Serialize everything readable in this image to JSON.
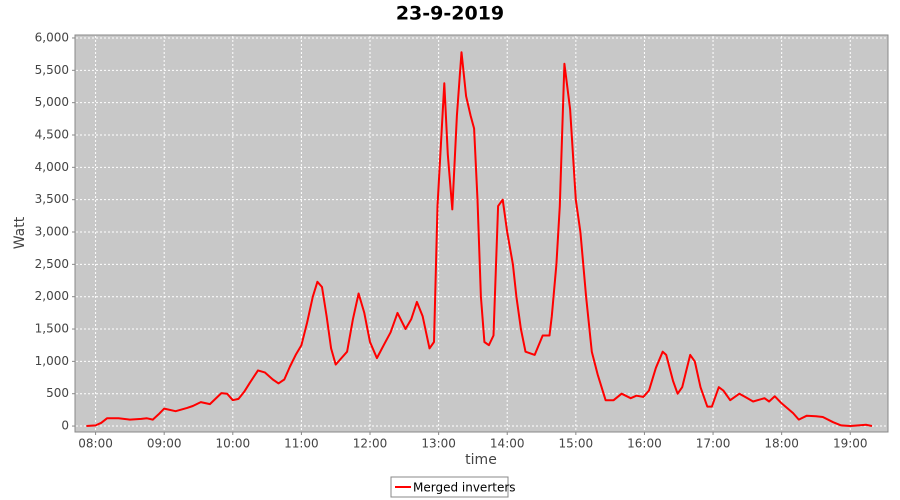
{
  "chart_data": {
    "type": "line",
    "title": "23-9-2019",
    "xlabel": "time",
    "ylabel": "Watt",
    "xlim": [
      "07:42",
      "19:33"
    ],
    "xticks": [
      "08:00",
      "09:00",
      "10:00",
      "11:00",
      "12:00",
      "13:00",
      "14:00",
      "15:00",
      "16:00",
      "17:00",
      "18:00",
      "19:00"
    ],
    "ylim": [
      -92,
      6046
    ],
    "yticks": [
      0,
      500,
      {
        "value": 1000,
        "label": "1,000"
      },
      {
        "value": 1500,
        "label": "1,500"
      },
      {
        "value": 2000,
        "label": "2,000"
      },
      {
        "value": 2500,
        "label": "2,500"
      },
      {
        "value": 3000,
        "label": "3,000"
      },
      {
        "value": 3500,
        "label": "3,500"
      },
      {
        "value": 4000,
        "label": "4,000"
      },
      {
        "value": 4500,
        "label": "4,500"
      },
      {
        "value": 5000,
        "label": "5,000"
      },
      {
        "value": 5500,
        "label": "5,500"
      },
      {
        "value": 6000,
        "label": "6,000"
      }
    ],
    "grid": true,
    "legend": "bottom",
    "x": [
      "07:52",
      "08:00",
      "08:05",
      "08:10",
      "08:20",
      "08:30",
      "08:40",
      "08:45",
      "08:50",
      "08:55",
      "09:00",
      "09:10",
      "09:20",
      "09:25",
      "09:32",
      "09:40",
      "09:50",
      "09:55",
      "10:00",
      "10:05",
      "10:10",
      "10:15",
      "10:22",
      "10:28",
      "10:35",
      "10:40",
      "10:45",
      "10:50",
      "10:55",
      "11:00",
      "11:05",
      "11:10",
      "11:14",
      "11:18",
      "11:22",
      "11:26",
      "11:30",
      "11:35",
      "11:40",
      "11:45",
      "11:50",
      "11:55",
      "12:00",
      "12:06",
      "12:12",
      "12:18",
      "12:24",
      "12:31",
      "12:36",
      "12:41",
      "12:46",
      "12:52",
      "12:56",
      "12:59",
      "13:05",
      "13:08",
      "13:12",
      "13:16",
      "13:20",
      "13:24",
      "13:28",
      "13:31",
      "13:34",
      "13:37",
      "13:40",
      "13:44",
      "13:48",
      "13:52",
      "13:56",
      "14:00",
      "14:05",
      "14:08",
      "14:12",
      "14:16",
      "14:24",
      "14:31",
      "14:37",
      "14:39",
      "14:43",
      "14:46",
      "14:50",
      "14:55",
      "15:00",
      "15:04",
      "15:09",
      "15:14",
      "15:19",
      "15:26",
      "15:33",
      "15:40",
      "15:48",
      "15:53",
      "15:59",
      "16:04",
      "16:10",
      "16:16",
      "16:19",
      "16:25",
      "16:29",
      "16:33",
      "16:40",
      "16:44",
      "16:49",
      "16:55",
      "16:59",
      "17:05",
      "17:09",
      "17:15",
      "17:23",
      "17:28",
      "17:35",
      "17:45",
      "17:49",
      "17:54",
      "18:00",
      "18:10",
      "18:15",
      "18:22",
      "18:30",
      "18:36",
      "18:45",
      "18:52",
      "19:00",
      "19:14",
      "19:19"
    ],
    "series": [
      {
        "name": "Merged inverters",
        "color": "#ff0000",
        "values": [
          0,
          10,
          50,
          120,
          120,
          100,
          110,
          120,
          100,
          180,
          270,
          230,
          280,
          310,
          370,
          340,
          510,
          500,
          400,
          420,
          530,
          670,
          860,
          830,
          720,
          660,
          720,
          920,
          1100,
          1250,
          1600,
          2000,
          2230,
          2150,
          1700,
          1200,
          950,
          1050,
          1150,
          1650,
          2050,
          1750,
          1300,
          1050,
          1250,
          1450,
          1750,
          1500,
          1650,
          1920,
          1700,
          1200,
          1300,
          3400,
          5300,
          4200,
          3350,
          4800,
          5780,
          5100,
          4800,
          4600,
          3500,
          2000,
          1300,
          1250,
          1400,
          3400,
          3500,
          3000,
          2500,
          2000,
          1500,
          1150,
          1100,
          1400,
          1400,
          1700,
          2500,
          3400,
          5600,
          4900,
          3500,
          3000,
          2000,
          1150,
          800,
          400,
          400,
          500,
          430,
          470,
          450,
          550,
          900,
          1150,
          1100,
          700,
          500,
          600,
          1100,
          1000,
          600,
          300,
          300,
          600,
          550,
          400,
          500,
          450,
          380,
          430,
          380,
          460,
          350,
          200,
          100,
          160,
          150,
          140,
          60,
          10,
          0,
          20,
          0
        ]
      }
    ]
  }
}
